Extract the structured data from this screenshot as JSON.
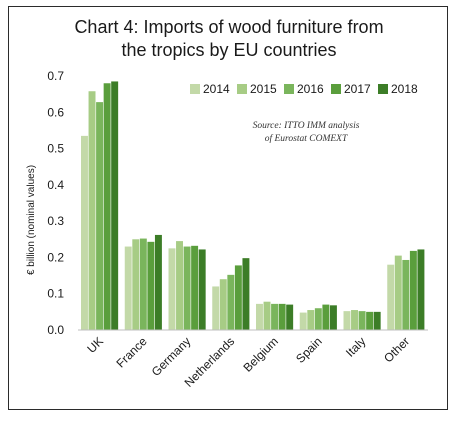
{
  "chart_data": {
    "type": "bar",
    "title_prefix": "Chart 4",
    "title_rest": ": Imports of wood furniture from",
    "title_line2": "the tropics by EU countries",
    "ylabel": "€ billion (nominal values)",
    "source_line1": "Source: ITTO IMM analysis",
    "source_line2": "of Eurostat COMEXT",
    "ylim": [
      0,
      0.7
    ],
    "yticks": [
      "0.0",
      "0.1",
      "0.2",
      "0.3",
      "0.4",
      "0.5",
      "0.6",
      "0.7"
    ],
    "categories": [
      "UK",
      "France",
      "Germany",
      "Netherlands",
      "Belgium",
      "Spain",
      "Italy",
      "Other"
    ],
    "series": [
      {
        "name": "2014",
        "color": "#c3d9a8",
        "values": [
          0.535,
          0.23,
          0.225,
          0.12,
          0.072,
          0.048,
          0.052,
          0.18
        ]
      },
      {
        "name": "2015",
        "color": "#a7cc85",
        "values": [
          0.658,
          0.25,
          0.245,
          0.14,
          0.078,
          0.055,
          0.055,
          0.205
        ]
      },
      {
        "name": "2016",
        "color": "#7ab55c",
        "values": [
          0.628,
          0.252,
          0.23,
          0.152,
          0.072,
          0.06,
          0.052,
          0.193
        ]
      },
      {
        "name": "2017",
        "color": "#5a9e3c",
        "values": [
          0.68,
          0.243,
          0.232,
          0.178,
          0.072,
          0.07,
          0.05,
          0.218
        ]
      },
      {
        "name": "2018",
        "color": "#3c7d27",
        "values": [
          0.685,
          0.262,
          0.222,
          0.198,
          0.07,
          0.068,
          0.05,
          0.222
        ]
      }
    ],
    "legend_position": "top-right",
    "grid": false
  }
}
